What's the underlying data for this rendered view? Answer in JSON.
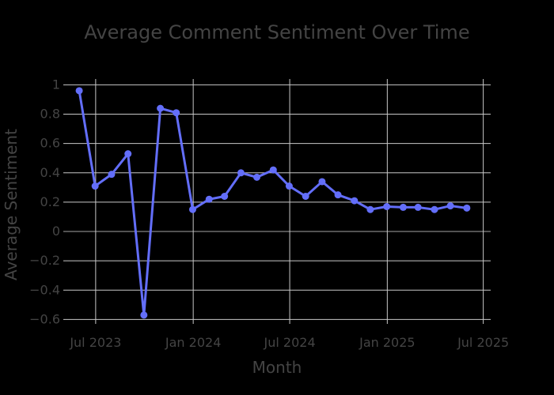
{
  "chart_data": {
    "type": "line",
    "title": "Average Comment Sentiment Over Time",
    "xlabel": "Month",
    "ylabel": "Average Sentiment",
    "x_ticks": [
      {
        "date": "2023-07-01",
        "label": "Jul 2023"
      },
      {
        "date": "2024-01-01",
        "label": "Jan 2024"
      },
      {
        "date": "2024-07-01",
        "label": "Jul 2024"
      },
      {
        "date": "2025-01-01",
        "label": "Jan 2025"
      },
      {
        "date": "2025-07-01",
        "label": "Jul 2025"
      }
    ],
    "y_ticks": [
      1,
      0.8,
      0.6,
      0.4,
      0.2,
      0,
      -0.2,
      -0.4,
      -0.6
    ],
    "y_tick_labels": [
      "1",
      "0.8",
      "0.6",
      "0.4",
      "0.2",
      "0",
      "−0.2",
      "−0.4",
      "−0.6"
    ],
    "xlim": [
      "2023-05-01",
      "2025-07-15"
    ],
    "ylim": [
      -0.63,
      1.04
    ],
    "grid": true,
    "series": [
      {
        "color": "#636efa",
        "points": [
          {
            "x": "2023-05-31",
            "y": 0.96
          },
          {
            "x": "2023-06-30",
            "y": 0.31
          },
          {
            "x": "2023-07-31",
            "y": 0.39
          },
          {
            "x": "2023-08-31",
            "y": 0.53
          },
          {
            "x": "2023-09-30",
            "y": -0.57
          },
          {
            "x": "2023-10-31",
            "y": 0.84
          },
          {
            "x": "2023-11-30",
            "y": 0.81
          },
          {
            "x": "2023-12-31",
            "y": 0.15
          },
          {
            "x": "2024-01-31",
            "y": 0.22
          },
          {
            "x": "2024-02-29",
            "y": 0.24
          },
          {
            "x": "2024-03-31",
            "y": 0.4
          },
          {
            "x": "2024-04-30",
            "y": 0.37
          },
          {
            "x": "2024-05-31",
            "y": 0.42
          },
          {
            "x": "2024-06-30",
            "y": 0.31
          },
          {
            "x": "2024-07-31",
            "y": 0.24
          },
          {
            "x": "2024-08-31",
            "y": 0.34
          },
          {
            "x": "2024-09-30",
            "y": 0.25
          },
          {
            "x": "2024-10-31",
            "y": 0.21
          },
          {
            "x": "2024-11-30",
            "y": 0.15
          },
          {
            "x": "2024-12-31",
            "y": 0.17
          },
          {
            "x": "2025-01-31",
            "y": 0.165
          },
          {
            "x": "2025-02-28",
            "y": 0.165
          },
          {
            "x": "2025-03-31",
            "y": 0.15
          },
          {
            "x": "2025-04-30",
            "y": 0.175
          },
          {
            "x": "2025-05-31",
            "y": 0.16
          }
        ]
      }
    ]
  }
}
